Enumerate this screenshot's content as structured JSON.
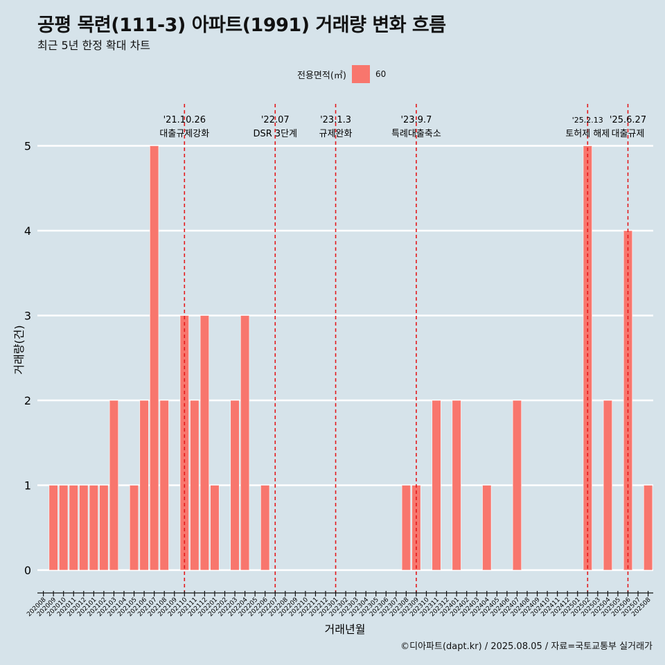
{
  "header": {
    "title": "공평 목련(111-3) 아파트(1991) 거래량 변화 흐름",
    "subtitle": "최근 5년 한정 확대 차트"
  },
  "legend": {
    "title": "전용면적(㎡)",
    "items": [
      {
        "label": "60",
        "color": "#f8766d"
      }
    ]
  },
  "caption": "©디아파트(dapt.kr) / 2025.08.05 / 자료=국토교통부 실거래가",
  "colors": {
    "background": "#d6e3ea",
    "bar": "#f8766d",
    "event_line": "#e31a1c",
    "grid": "#ffffff"
  },
  "chart_data": {
    "type": "bar",
    "xlabel": "거래년월",
    "ylabel": "거래량(건)",
    "ylim": [
      0,
      5
    ],
    "yticks": [
      0,
      1,
      2,
      3,
      4,
      5
    ],
    "grid": true,
    "legend_position": "top",
    "categories": [
      "202008",
      "202009",
      "202010",
      "202011",
      "202012",
      "202101",
      "202102",
      "202103",
      "202104",
      "202105",
      "202106",
      "202107",
      "202108",
      "202109",
      "202110",
      "202111",
      "202112",
      "202201",
      "202202",
      "202203",
      "202204",
      "202205",
      "202206",
      "202207",
      "202208",
      "202209",
      "202210",
      "202211",
      "202212",
      "202301",
      "202302",
      "202303",
      "202304",
      "202305",
      "202306",
      "202307",
      "202308",
      "202309",
      "202310",
      "202311",
      "202312",
      "202401",
      "202402",
      "202403",
      "202404",
      "202405",
      "202406",
      "202407",
      "202408",
      "202409",
      "202410",
      "202411",
      "202412",
      "202501",
      "202502",
      "202503",
      "202504",
      "202505",
      "202506",
      "202507",
      "202508"
    ],
    "series": [
      {
        "name": "60",
        "values": [
          0,
          1,
          1,
          1,
          1,
          1,
          1,
          2,
          0,
          1,
          2,
          5,
          2,
          0,
          3,
          2,
          3,
          1,
          0,
          2,
          3,
          0,
          1,
          0,
          0,
          0,
          0,
          0,
          0,
          0,
          0,
          0,
          0,
          0,
          0,
          0,
          1,
          1,
          0,
          2,
          0,
          2,
          0,
          0,
          1,
          0,
          0,
          2,
          0,
          0,
          0,
          0,
          0,
          0,
          5,
          0,
          2,
          0,
          4,
          0,
          1
        ]
      }
    ],
    "annotations": [
      {
        "x": "202110",
        "date": "'21.10.26",
        "label": "대출규제강화"
      },
      {
        "x": "202207",
        "date": "'22.07",
        "label": "DSR 3단계"
      },
      {
        "x": "202301",
        "date": "'23.1.3",
        "label": "규제완화"
      },
      {
        "x": "202309",
        "date": "'23.9.7",
        "label": "특례대출축소"
      },
      {
        "x": "202502",
        "date": "'25.2.13",
        "label": "토허제 해제"
      },
      {
        "x": "202506",
        "date": "'25.6.27",
        "label": "대출규제"
      }
    ]
  }
}
